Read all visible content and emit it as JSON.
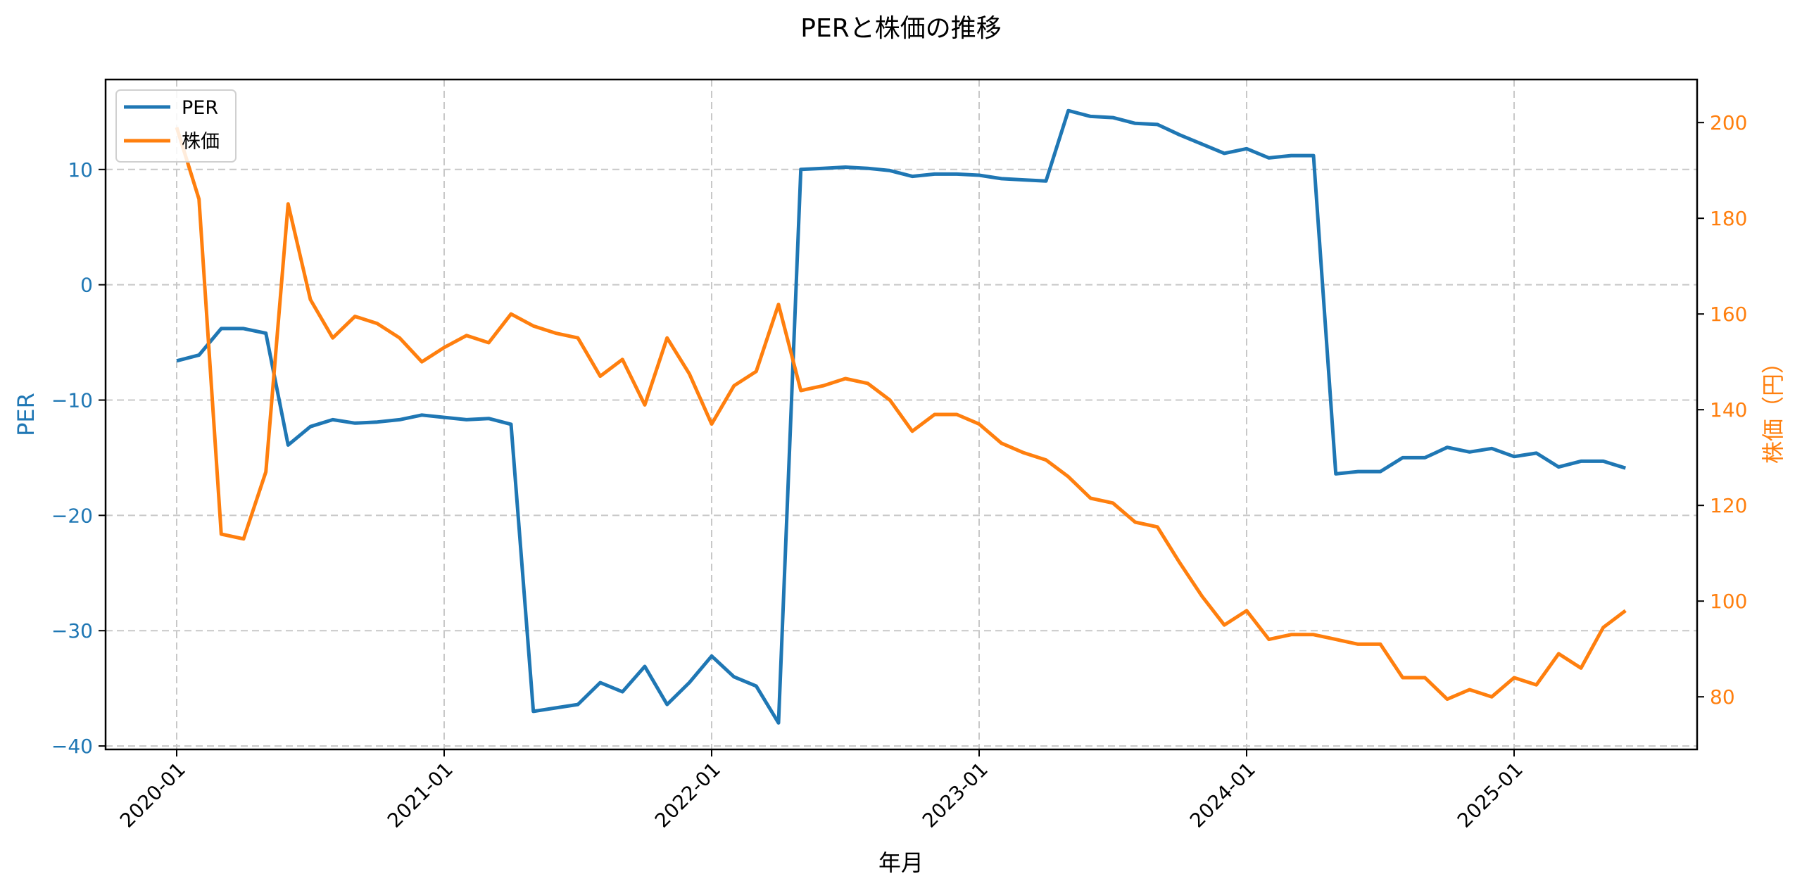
{
  "chart_data": {
    "type": "line",
    "title": "PERと株価の推移",
    "xlabel": "年月",
    "ylabel_left": "PER",
    "ylabel_right": "株価（円）",
    "grid": true,
    "legend_position": "upper left",
    "x_tick_labels": [
      "2020-01",
      "2021-01",
      "2022-01",
      "2023-01",
      "2024-01",
      "2025-01"
    ],
    "y_left_ticks": [
      10,
      0,
      -10,
      -20,
      -30,
      -40
    ],
    "y_right_ticks": [
      200,
      180,
      160,
      140,
      120,
      100,
      80
    ],
    "y_left_lim": [
      -40.3,
      17.8
    ],
    "y_right_lim": [
      69,
      209
    ],
    "x": [
      "2020-01",
      "2020-02",
      "2020-03",
      "2020-04",
      "2020-05",
      "2020-06",
      "2020-07",
      "2020-08",
      "2020-09",
      "2020-10",
      "2020-11",
      "2020-12",
      "2021-01",
      "2021-02",
      "2021-03",
      "2021-04",
      "2021-05",
      "2021-06",
      "2021-07",
      "2021-08",
      "2021-09",
      "2021-10",
      "2021-11",
      "2021-12",
      "2022-01",
      "2022-02",
      "2022-03",
      "2022-04",
      "2022-05",
      "2022-06",
      "2022-07",
      "2022-08",
      "2022-09",
      "2022-10",
      "2022-11",
      "2022-12",
      "2023-01",
      "2023-02",
      "2023-03",
      "2023-04",
      "2023-05",
      "2023-06",
      "2023-07",
      "2023-08",
      "2023-09",
      "2023-10",
      "2023-11",
      "2023-12",
      "2024-01",
      "2024-02",
      "2024-03",
      "2024-04",
      "2024-05",
      "2024-06",
      "2024-07",
      "2024-08",
      "2024-09",
      "2024-10",
      "2024-11",
      "2024-12",
      "2025-01",
      "2025-02",
      "2025-03",
      "2025-04",
      "2025-05",
      "2025-06"
    ],
    "series": [
      {
        "name": "PER",
        "axis": "left",
        "color": "#1f77b4",
        "values": [
          -6.6,
          -6.1,
          -3.8,
          -3.8,
          -4.2,
          -13.9,
          -12.3,
          -11.7,
          -12.0,
          -11.9,
          -11.7,
          -11.3,
          -11.5,
          -11.7,
          -11.6,
          -12.1,
          -37.0,
          -36.7,
          -36.4,
          -34.5,
          -35.3,
          -33.1,
          -36.4,
          -34.5,
          -32.2,
          -34.0,
          -34.8,
          -38.0,
          10.0,
          10.1,
          10.2,
          10.1,
          9.9,
          9.4,
          9.6,
          9.6,
          9.5,
          9.2,
          9.1,
          9.0,
          15.1,
          14.6,
          14.5,
          14.0,
          13.9,
          13.0,
          12.2,
          11.4,
          11.8,
          11.0,
          11.2,
          11.2,
          -16.4,
          -16.2,
          -16.2,
          -15.0,
          -15.0,
          -14.1,
          -14.5,
          -14.2,
          -14.9,
          -14.6,
          -15.8,
          -15.3,
          -15.3,
          -15.9
        ]
      },
      {
        "name": "株価",
        "axis": "right",
        "color": "#ff7f0e",
        "values": [
          199,
          184,
          114,
          113,
          127,
          183,
          163,
          155,
          159.5,
          158,
          155,
          150,
          153,
          155.5,
          154,
          160,
          157.5,
          156,
          155,
          147,
          150.5,
          141,
          155,
          147.5,
          137,
          145,
          148,
          162,
          144,
          145,
          146.5,
          145.5,
          142,
          135.5,
          139,
          139,
          137,
          133,
          131,
          129.5,
          126,
          121.5,
          120.5,
          116.5,
          115.5,
          108,
          101,
          95,
          98,
          92,
          93,
          93,
          92,
          91,
          91,
          84,
          84,
          79.5,
          81.5,
          80,
          84,
          82.5,
          89,
          86,
          94.5,
          98
        ]
      }
    ]
  },
  "legend": {
    "items": [
      {
        "label": "PER",
        "color": "#1f77b4"
      },
      {
        "label": "株価",
        "color": "#ff7f0e"
      }
    ]
  },
  "colors": {
    "per": "#1f77b4",
    "price": "#ff7f0e",
    "grid": "#c8c8c8",
    "axis": "#000000"
  }
}
